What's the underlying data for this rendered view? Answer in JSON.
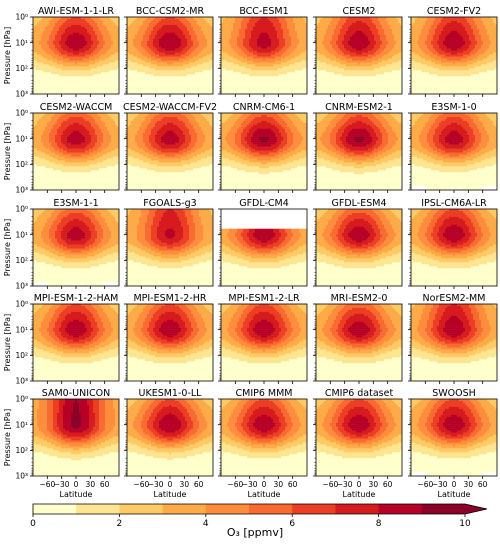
{
  "chart_data": {
    "type": "heatmap",
    "variable": "O3",
    "colorbar": {
      "label": "O₃ [ppmv]",
      "ticks": [
        "0",
        "2",
        "4",
        "6",
        "8",
        "10"
      ],
      "levels": [
        0,
        1,
        2,
        3,
        4,
        5,
        6,
        7,
        8,
        9,
        10
      ],
      "extend": "max",
      "colors": [
        "#ffffcc",
        "#fee591",
        "#feca66",
        "#fdaa48",
        "#fd8c3c",
        "#f96a30",
        "#ec3e24",
        "#d61b1f",
        "#b60026",
        "#8b0026"
      ]
    },
    "xlabel": "Latitude",
    "xticks": [
      "−60",
      "−30",
      "0",
      "30",
      "60"
    ],
    "ylabel": "Pressure [hPa]",
    "yticks": [
      "10⁰",
      "10¹",
      "10²",
      "10³"
    ],
    "grid": false,
    "panels": [
      {
        "title": "AWI-ESM-1-1-LR",
        "peak": 8.8,
        "topfill": 6.0,
        "missing": "none"
      },
      {
        "title": "BCC-CSM2-MR",
        "peak": 8.9,
        "topfill": 6.0,
        "missing": "none"
      },
      {
        "title": "BCC-ESM1",
        "peak": 8.4,
        "topfill": 7.0,
        "missing": "none"
      },
      {
        "title": "CESM2",
        "peak": 8.8,
        "topfill": 6.5,
        "missing": "none"
      },
      {
        "title": "CESM2-FV2",
        "peak": 8.8,
        "topfill": 6.5,
        "missing": "none"
      },
      {
        "title": "CESM2-WACCM",
        "peak": 8.6,
        "topfill": 5.5,
        "missing": "none"
      },
      {
        "title": "CESM2-WACCM-FV2",
        "peak": 8.6,
        "topfill": 5.5,
        "missing": "none"
      },
      {
        "title": "CNRM-CM6-1",
        "peak": 9.2,
        "topfill": 5.5,
        "missing": "none"
      },
      {
        "title": "CNRM-ESM2-1",
        "peak": 9.2,
        "topfill": 5.5,
        "missing": "none"
      },
      {
        "title": "E3SM-1-0",
        "peak": 8.6,
        "topfill": 5.5,
        "missing": "bottom"
      },
      {
        "title": "E3SM-1-1",
        "peak": 8.6,
        "topfill": 5.5,
        "missing": "bottom"
      },
      {
        "title": "FGOALS-g3",
        "peak": 8.2,
        "topfill": 7.0,
        "missing": "none"
      },
      {
        "title": "GFDL-CM4",
        "peak": 8.8,
        "topfill": 6.0,
        "missing": "top"
      },
      {
        "title": "GFDL-ESM4",
        "peak": 8.8,
        "topfill": 5.5,
        "missing": "none"
      },
      {
        "title": "IPSL-CM6A-LR",
        "peak": 8.8,
        "topfill": 6.0,
        "missing": "none"
      },
      {
        "title": "MPI-ESM-1-2-HAM",
        "peak": 8.8,
        "topfill": 6.0,
        "missing": "none"
      },
      {
        "title": "MPI-ESM1-2-HR",
        "peak": 8.8,
        "topfill": 6.0,
        "missing": "none"
      },
      {
        "title": "MPI-ESM1-2-LR",
        "peak": 8.8,
        "topfill": 6.0,
        "missing": "none"
      },
      {
        "title": "MRI-ESM2-0",
        "peak": 8.8,
        "topfill": 5.5,
        "missing": "none"
      },
      {
        "title": "NorESM2-MM",
        "peak": 8.8,
        "topfill": 7.0,
        "missing": "none"
      },
      {
        "title": "SAM0-UNICON",
        "peak": 9.2,
        "topfill": 9.0,
        "missing": "none"
      },
      {
        "title": "UKESM1-0-LL",
        "peak": 9.0,
        "topfill": 6.0,
        "missing": "none"
      },
      {
        "title": "CMIP6 MMM",
        "peak": 8.8,
        "topfill": 6.0,
        "missing": "none"
      },
      {
        "title": "CMIP6 dataset",
        "peak": 8.8,
        "topfill": 6.0,
        "missing": "none"
      },
      {
        "title": "SWOOSH",
        "peak": 8.8,
        "topfill": 6.0,
        "missing": "bottom"
      }
    ]
  }
}
